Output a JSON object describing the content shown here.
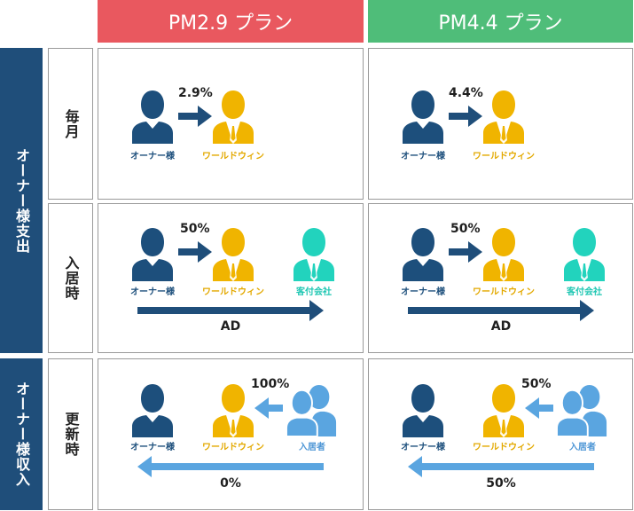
{
  "colors": {
    "plan_a": "#e9585f",
    "plan_b": "#4fbd79",
    "expense": "#1f4e7a",
    "income": "#1f4e7a",
    "owner": "#1d4f7c",
    "ww": "#f0b400",
    "agent": "#22d3bd",
    "tenant": "#5aa5e0",
    "arrow_dark": "#1f4e7a",
    "arrow_light": "#5aa5e0"
  },
  "plans": [
    "PM2.9 プラン",
    "PM4.4 プラン"
  ],
  "groups": {
    "expense": "オーナー様支出",
    "income": "オーナー様収入"
  },
  "rows": [
    "毎月",
    "入居時",
    "更新時"
  ],
  "labels": {
    "owner": "オーナー様",
    "ww": "ワールドウィン",
    "agent": "客付会社",
    "tenant": "入居者"
  },
  "cells": {
    "monthly": {
      "a_pct": "2.9%",
      "b_pct": "4.4%"
    },
    "movein": {
      "a_pct": "50%",
      "b_pct": "50%",
      "a_bottom": "AD",
      "b_bottom": "AD"
    },
    "renewal": {
      "a_pct": "100%",
      "b_pct": "50%",
      "a_bottom": "0%",
      "b_bottom": "50%"
    }
  }
}
